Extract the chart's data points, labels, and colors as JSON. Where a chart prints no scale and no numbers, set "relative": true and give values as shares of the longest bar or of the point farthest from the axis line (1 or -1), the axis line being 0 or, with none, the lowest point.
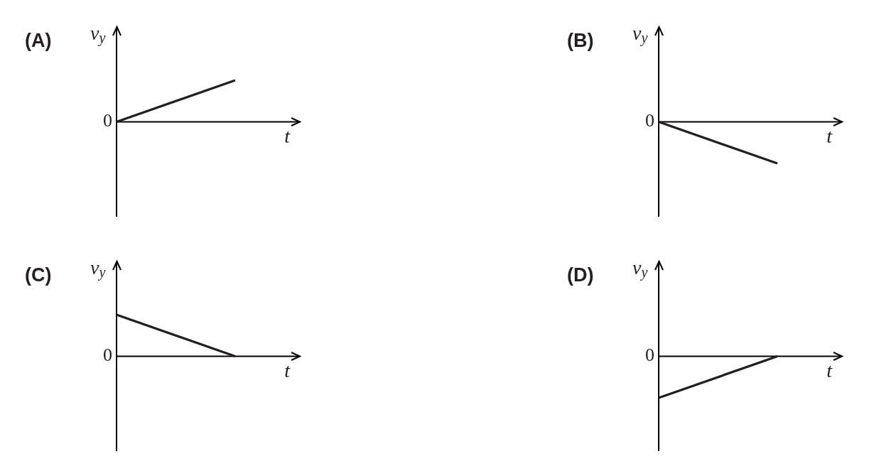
{
  "chart_data": [
    {
      "type": "line",
      "title": "(A)",
      "xlabel": "t",
      "ylabel": "v$_{y}$",
      "categories": [
        null,
        null
      ],
      "values": [
        0,
        1
      ],
      "color": "#231f20",
      "relative": true,
      "annotations": [
        "0"
      ]
    },
    {
      "type": "line",
      "title": "(B)",
      "xlabel": "t",
      "ylabel": "v$_{y}$",
      "categories": [
        null,
        null
      ],
      "values": [
        0,
        -1
      ],
      "color": "#231f20",
      "relative": true,
      "annotations": [
        "0"
      ]
    },
    {
      "type": "line",
      "title": "(C)",
      "xlabel": "t",
      "ylabel": "v$_{y}$",
      "categories": [
        null,
        null
      ],
      "values": [
        1,
        0
      ],
      "color": "#231f20",
      "relative": true,
      "annotations": [
        "0"
      ]
    },
    {
      "type": "line",
      "title": "(D)",
      "xlabel": "t",
      "ylabel": "v$_{y}$",
      "categories": [
        null,
        null
      ],
      "values": [
        -1,
        0
      ],
      "color": "#231f20",
      "relative": true,
      "annotations": [
        "0"
      ]
    }
  ]
}
